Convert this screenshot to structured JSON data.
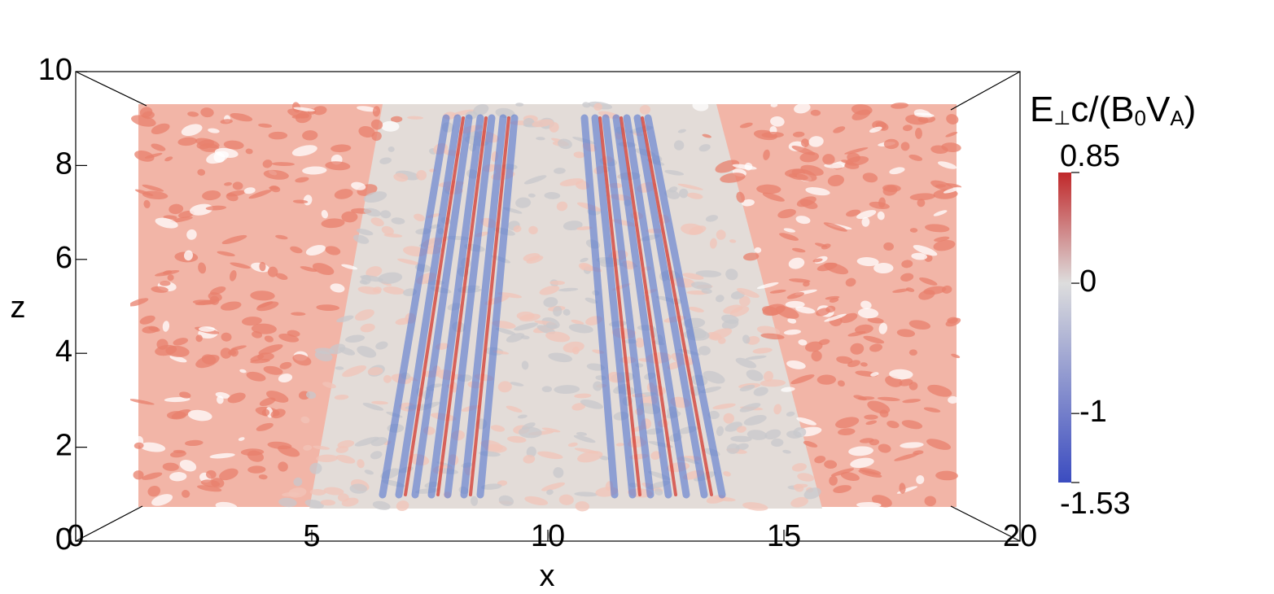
{
  "chart_data": {
    "type": "volume",
    "xlabel": "x",
    "ylabel": "z",
    "xlim": [
      0,
      20
    ],
    "xticks": [
      0,
      5,
      10,
      15,
      20
    ],
    "ylim": [
      0,
      10
    ],
    "yticks": [
      0,
      2,
      4,
      6,
      8,
      10
    ],
    "colorbar": {
      "label": [
        "E",
        "⊥",
        "c/(B",
        "0",
        "V",
        "A",
        ")"
      ],
      "clim": [
        -1.53,
        0.85
      ],
      "ticks": [
        -1.53,
        -1,
        0,
        0.85
      ],
      "colormap": [
        "#3b4cc0",
        "#dddddd",
        "#c0282a"
      ]
    }
  }
}
